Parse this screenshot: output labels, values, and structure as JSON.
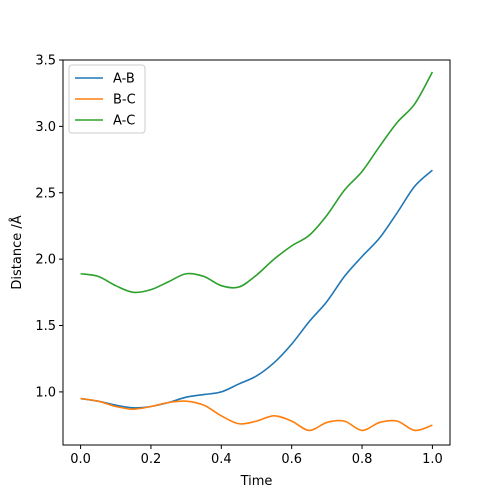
{
  "chart_data": {
    "type": "line",
    "xlabel": "Time",
    "ylabel": "Distance /Å",
    "xlim": [
      -0.05,
      1.05
    ],
    "ylim": [
      0.6,
      3.5
    ],
    "xticks": [
      "0.0",
      "0.2",
      "0.4",
      "0.6",
      "0.8",
      "1.0"
    ],
    "xtick_values": [
      0.0,
      0.2,
      0.4,
      0.6,
      0.8,
      1.0
    ],
    "yticks": [
      "1.0",
      "1.5",
      "2.0",
      "2.5",
      "3.0",
      "3.5"
    ],
    "ytick_values": [
      1.0,
      1.5,
      2.0,
      2.5,
      3.0,
      3.5
    ],
    "grid": false,
    "legend_position": "upper-left",
    "x": [
      0.0,
      0.05,
      0.1,
      0.15,
      0.2,
      0.25,
      0.3,
      0.35,
      0.4,
      0.45,
      0.5,
      0.55,
      0.6,
      0.65,
      0.7,
      0.75,
      0.8,
      0.85,
      0.9,
      0.95,
      1.0
    ],
    "series": [
      {
        "name": "A-B",
        "color": "#1f77b4",
        "values": [
          0.95,
          0.93,
          0.9,
          0.88,
          0.89,
          0.92,
          0.96,
          0.98,
          1.0,
          1.06,
          1.12,
          1.22,
          1.36,
          1.53,
          1.68,
          1.87,
          2.02,
          2.16,
          2.35,
          2.55,
          2.67
        ]
      },
      {
        "name": "B-C",
        "color": "#ff7f0e",
        "values": [
          0.95,
          0.93,
          0.89,
          0.87,
          0.89,
          0.92,
          0.93,
          0.9,
          0.82,
          0.76,
          0.78,
          0.82,
          0.78,
          0.71,
          0.77,
          0.78,
          0.71,
          0.77,
          0.78,
          0.71,
          0.75
        ]
      },
      {
        "name": "A-C",
        "color": "#2ca02c",
        "values": [
          1.89,
          1.87,
          1.8,
          1.75,
          1.77,
          1.83,
          1.89,
          1.87,
          1.8,
          1.79,
          1.88,
          2.0,
          2.1,
          2.18,
          2.33,
          2.52,
          2.66,
          2.85,
          3.03,
          3.17,
          3.41
        ]
      }
    ]
  }
}
